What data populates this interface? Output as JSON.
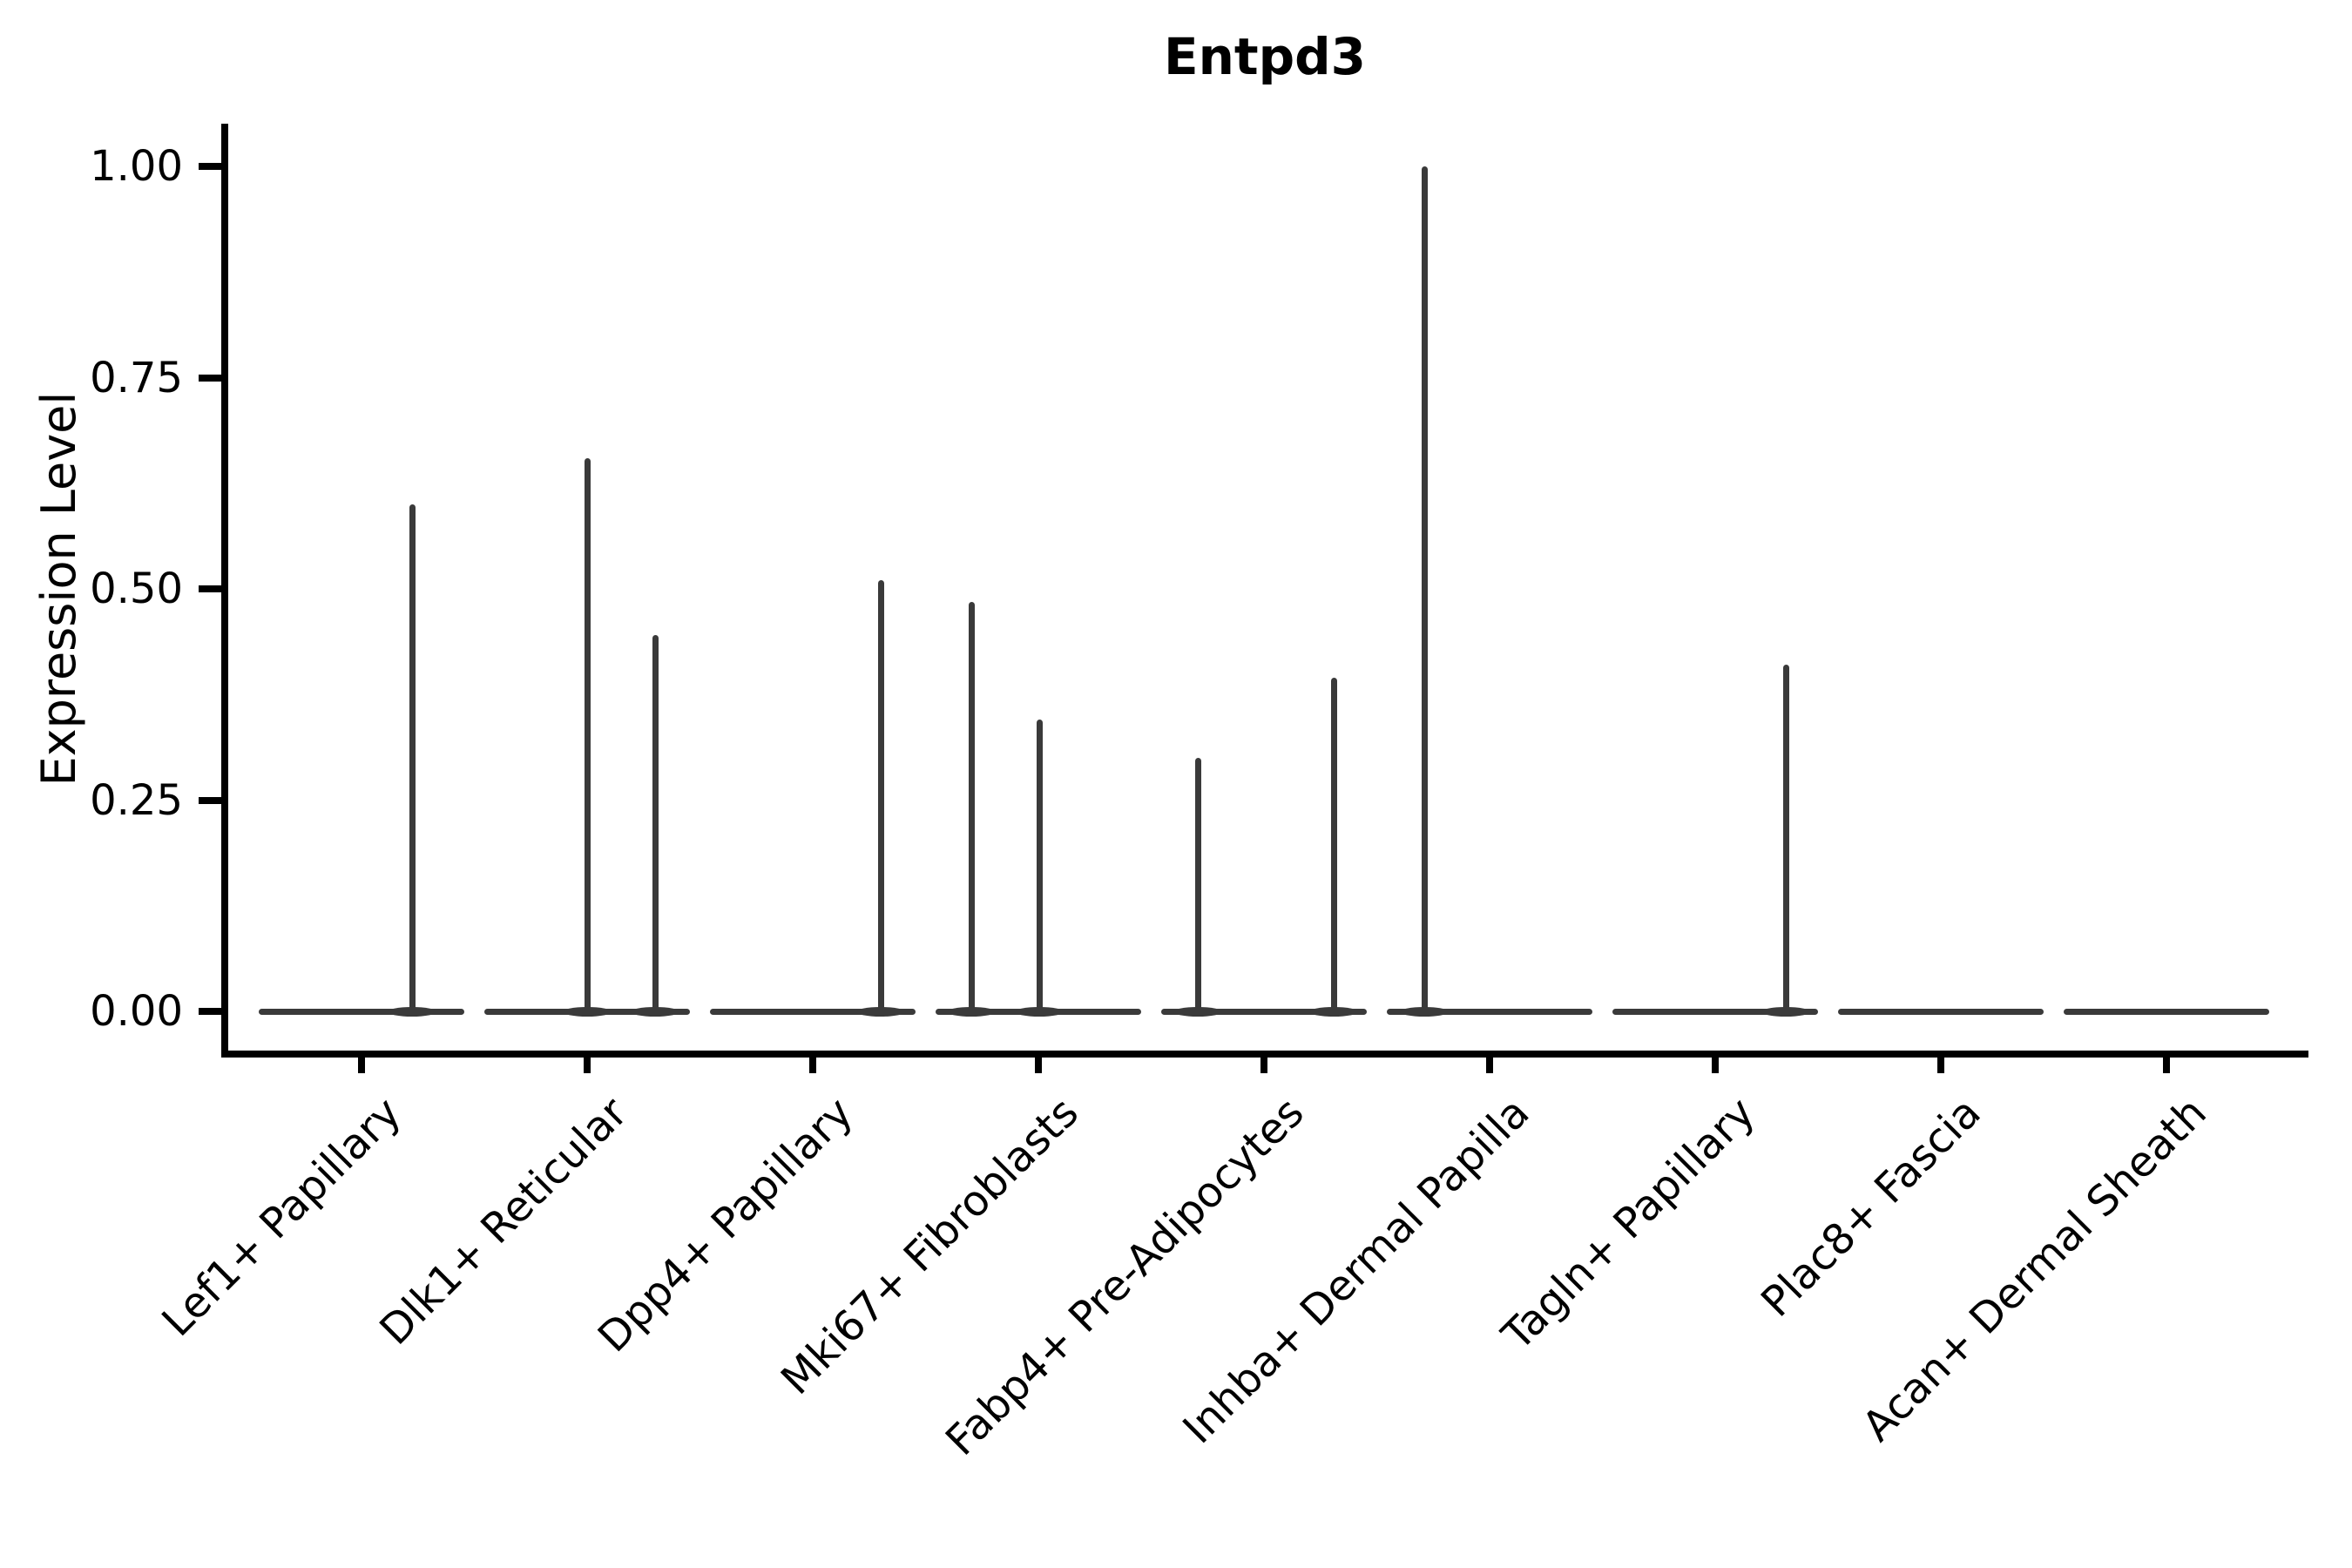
{
  "title": "Entpd3",
  "y_axis": {
    "label": "Expression Level"
  },
  "chart_data": {
    "type": "violin",
    "title": "Entpd3",
    "xlabel": "",
    "ylabel": "Expression Level",
    "ylim": [
      0,
      1.05
    ],
    "yticks": [
      1.0,
      0.75,
      0.5,
      0.25,
      0.0
    ],
    "grid": false,
    "legend": false,
    "note": "Collapsed violins: wide flat density line at 0 per category with thin needle spikes rising to the maximum expression of the few expressing cells; dx is the horizontal pixel offset of each needle from the category center",
    "baseline_value": 0.0,
    "categories": [
      {
        "label": "Lef1+ Papillary",
        "spikes": [
          {
            "dx": 58,
            "max": 0.6
          }
        ]
      },
      {
        "label": "Dlk1+ Reticular",
        "spikes": [
          {
            "dx": 0,
            "max": 0.655
          },
          {
            "dx": 78,
            "max": 0.445
          }
        ]
      },
      {
        "label": "Dpp4+ Papillary",
        "spikes": [
          {
            "dx": 78,
            "max": 0.51
          }
        ]
      },
      {
        "label": "Mki67+ Fibroblasts",
        "spikes": [
          {
            "dx": -77,
            "max": 0.485
          },
          {
            "dx": 1,
            "max": 0.345
          }
        ]
      },
      {
        "label": "Fabp4+ Pre-Adipocytes",
        "spikes": [
          {
            "dx": -76,
            "max": 0.3
          },
          {
            "dx": 80,
            "max": 0.395
          }
        ]
      },
      {
        "label": "Inhba+ Dermal Papilla",
        "spikes": [
          {
            "dx": -75,
            "max": 1.0
          }
        ]
      },
      {
        "label": "Tagln+ Papillary",
        "spikes": [
          {
            "dx": 81,
            "max": 0.41
          }
        ]
      },
      {
        "label": "Plac8+ Fascia",
        "spikes": []
      },
      {
        "label": "Acan+ Dermal Sheath",
        "spikes": []
      }
    ],
    "colors": {
      "violin_stroke": "#3a3a3a",
      "axis": "#000000",
      "text": "#000000",
      "background": "#ffffff"
    }
  }
}
